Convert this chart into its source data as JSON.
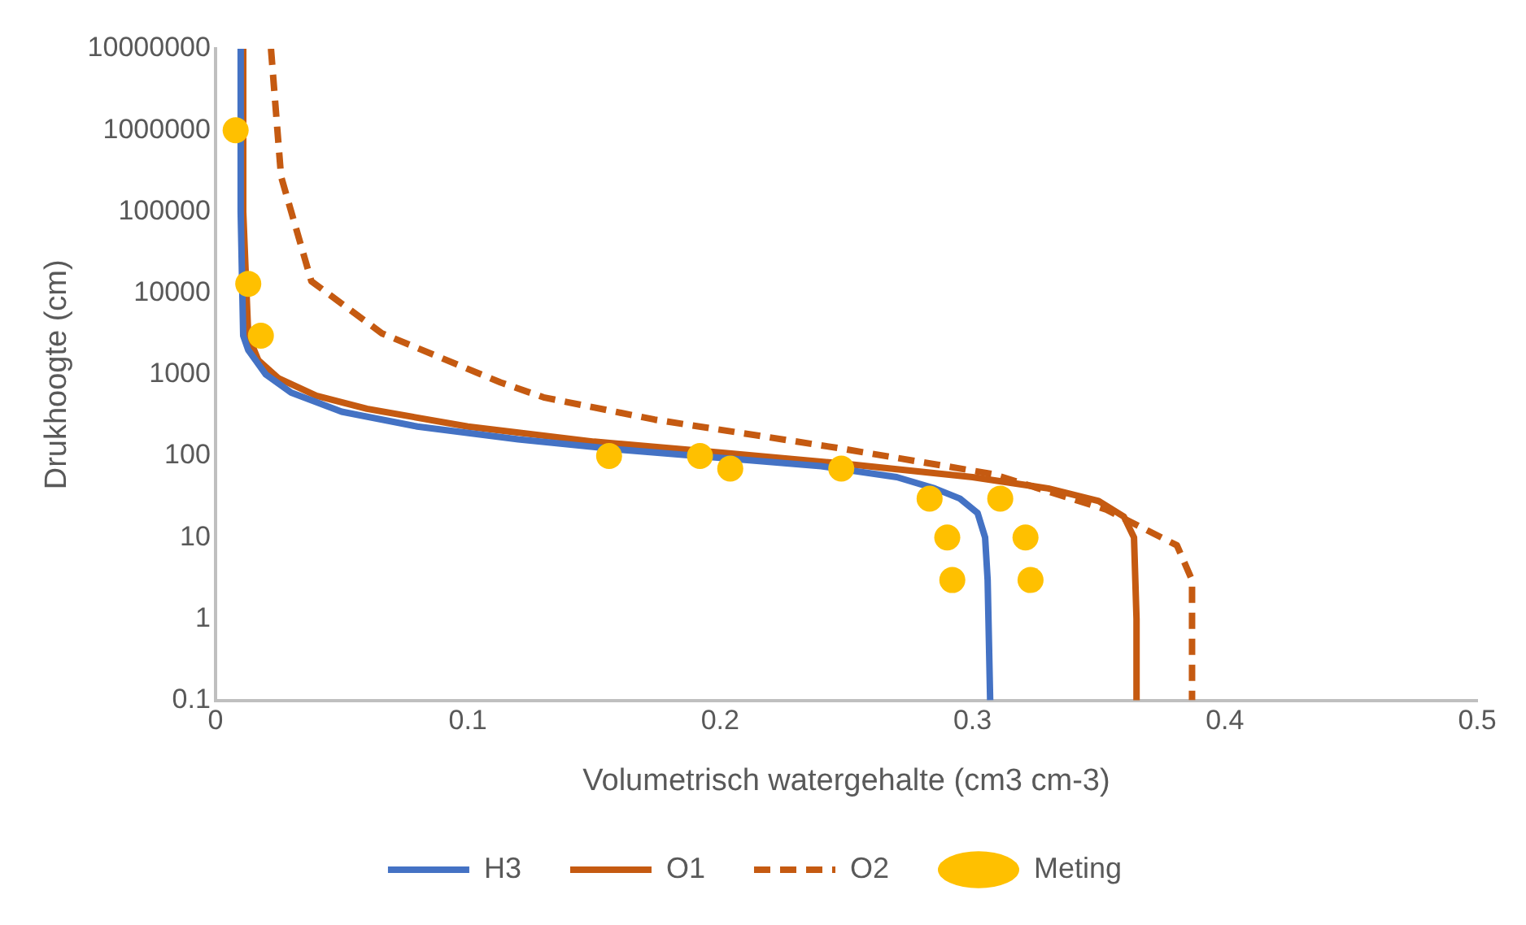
{
  "chart_data": {
    "type": "line",
    "xlabel": "Volumetrisch watergehalte (cm3 cm-3)",
    "ylabel": "Drukhoogte (cm)",
    "xlim": [
      0,
      0.5
    ],
    "xticks": [
      0,
      0.1,
      0.2,
      0.3,
      0.4,
      0.5
    ],
    "ylim": [
      0.1,
      10000000
    ],
    "yticks": [
      0.1,
      1,
      10,
      100,
      1000,
      10000,
      100000,
      1000000,
      10000000
    ],
    "log": "y",
    "grid": false,
    "legend": "bottom",
    "series": [
      {
        "name": "H3",
        "type": "line",
        "color": "#4472c4",
        "line_style": "solid",
        "marker": "none",
        "x": [
          0.01,
          0.01,
          0.011,
          0.013,
          0.02,
          0.03,
          0.05,
          0.08,
          0.12,
          0.16,
          0.2,
          0.24,
          0.27,
          0.285,
          0.295,
          0.302,
          0.305,
          0.306,
          0.307
        ],
        "values": [
          10000000,
          100000,
          3000,
          2000,
          1000,
          600,
          350,
          230,
          160,
          120,
          95,
          75,
          55,
          40,
          30,
          20,
          10,
          3,
          0.1
        ]
      },
      {
        "name": "O1",
        "type": "line",
        "color": "#c55a11",
        "line_style": "solid",
        "marker": "none",
        "x": [
          0.011,
          0.011,
          0.013,
          0.017,
          0.025,
          0.04,
          0.06,
          0.1,
          0.15,
          0.2,
          0.25,
          0.3,
          0.33,
          0.35,
          0.36,
          0.364,
          0.365,
          0.365
        ],
        "values": [
          10000000,
          100000,
          3000,
          1500,
          900,
          550,
          380,
          230,
          150,
          110,
          80,
          55,
          40,
          28,
          18,
          10,
          1,
          0.1
        ]
      },
      {
        "name": "O2",
        "type": "line",
        "color": "#c55a11",
        "line_style": "dashed",
        "marker": "none",
        "x": [
          0.022,
          0.026,
          0.038,
          0.066,
          0.113,
          0.13,
          0.174,
          0.247,
          0.308,
          0.353,
          0.381,
          0.387,
          0.387
        ],
        "values": [
          10000000,
          270000,
          14000,
          3200,
          800,
          525,
          280,
          125,
          60,
          22,
          8,
          3,
          0.1
        ]
      },
      {
        "name": "Meting",
        "type": "scatter",
        "color": "#ffc000",
        "marker": "circle",
        "x": [
          0.008,
          0.013,
          0.018,
          0.156,
          0.192,
          0.204,
          0.248,
          0.283,
          0.311,
          0.29,
          0.321,
          0.292,
          0.323
        ],
        "values": [
          1000000,
          13000,
          3000,
          100,
          100,
          70,
          70,
          30,
          30,
          10,
          10,
          3,
          3
        ]
      }
    ]
  }
}
